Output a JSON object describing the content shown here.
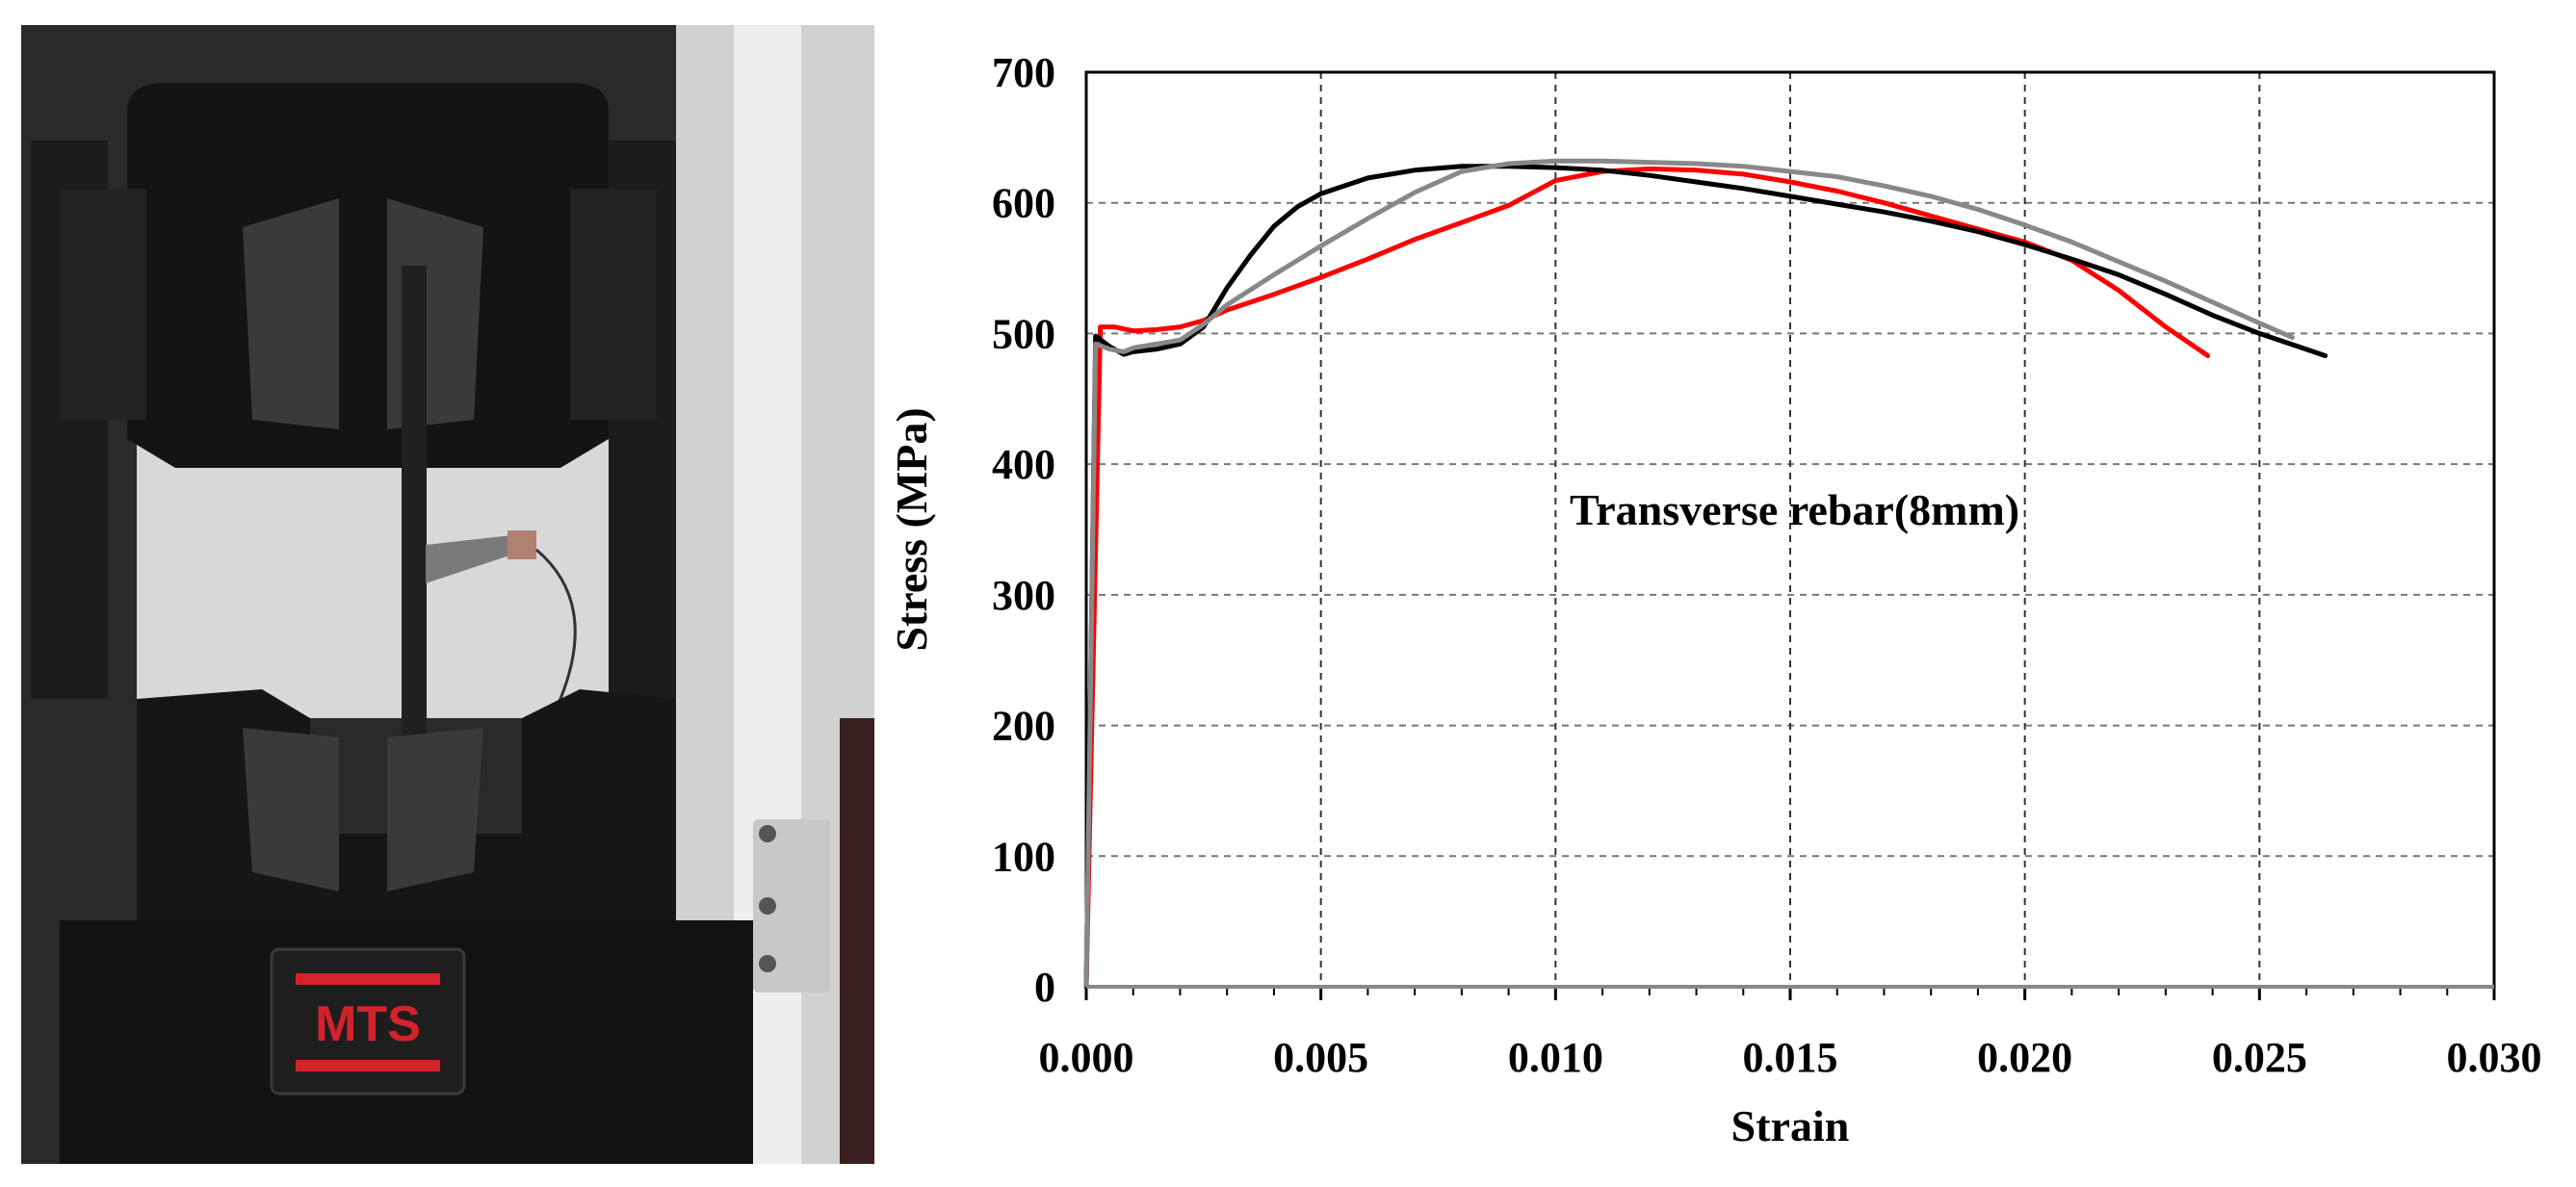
{
  "photo": {
    "logo_text": "MTS",
    "colors": {
      "frame": "#1b1b1b",
      "background": "#d7d9d8",
      "logo_red": "#d5222a",
      "column": "#e6e6e6"
    }
  },
  "chart_data": {
    "type": "line",
    "title": "",
    "annotation": "Transverse rebar(8mm)",
    "xlabel": "Strain",
    "ylabel": "Stress (MPa)",
    "xlim": [
      0.0,
      0.03
    ],
    "ylim": [
      0,
      700
    ],
    "x_ticks": [
      "0.000",
      "0.005",
      "0.010",
      "0.015",
      "0.020",
      "0.025",
      "0.030"
    ],
    "y_ticks": [
      "0",
      "100",
      "200",
      "300",
      "400",
      "500",
      "600",
      "700"
    ],
    "grid": true,
    "legend": "none",
    "series": [
      {
        "color": "#ff0000",
        "x": [
          0.0,
          0.0003,
          0.0006,
          0.001,
          0.0015,
          0.002,
          0.0025,
          0.003,
          0.004,
          0.005,
          0.006,
          0.007,
          0.008,
          0.009,
          0.01,
          0.011,
          0.012,
          0.013,
          0.014,
          0.015,
          0.016,
          0.017,
          0.018,
          0.019,
          0.02,
          0.021,
          0.022,
          0.023,
          0.0239
        ],
        "y": [
          0,
          505,
          505,
          502,
          503,
          505,
          510,
          518,
          530,
          543,
          557,
          572,
          585,
          598,
          617,
          624,
          626,
          625,
          622,
          616,
          609,
          600,
          590,
          580,
          570,
          556,
          533,
          505,
          483
        ]
      },
      {
        "color": "#000000",
        "x": [
          0.0,
          0.0002,
          0.0005,
          0.0008,
          0.001,
          0.0015,
          0.002,
          0.0025,
          0.003,
          0.0035,
          0.004,
          0.0045,
          0.005,
          0.006,
          0.007,
          0.008,
          0.009,
          0.01,
          0.011,
          0.012,
          0.013,
          0.014,
          0.015,
          0.016,
          0.017,
          0.018,
          0.019,
          0.02,
          0.021,
          0.022,
          0.023,
          0.024,
          0.025,
          0.0264
        ],
        "y": [
          0,
          498,
          490,
          484,
          486,
          488,
          492,
          505,
          535,
          560,
          582,
          597,
          607,
          619,
          625,
          628,
          628,
          627,
          625,
          621,
          616,
          611,
          605,
          599,
          593,
          586,
          578,
          568,
          557,
          545,
          530,
          514,
          500,
          483
        ]
      },
      {
        "color": "#888888",
        "x": [
          0.0,
          0.0002,
          0.0005,
          0.0008,
          0.001,
          0.0015,
          0.002,
          0.0025,
          0.003,
          0.004,
          0.005,
          0.006,
          0.007,
          0.008,
          0.009,
          0.01,
          0.011,
          0.012,
          0.013,
          0.014,
          0.015,
          0.016,
          0.017,
          0.018,
          0.019,
          0.02,
          0.021,
          0.022,
          0.023,
          0.024,
          0.025,
          0.0257
        ],
        "y": [
          0,
          492,
          488,
          486,
          489,
          492,
          495,
          507,
          522,
          545,
          567,
          588,
          608,
          624,
          630,
          632,
          632,
          631,
          630,
          628,
          624,
          620,
          613,
          605,
          595,
          583,
          570,
          555,
          540,
          524,
          508,
          497
        ]
      }
    ]
  }
}
